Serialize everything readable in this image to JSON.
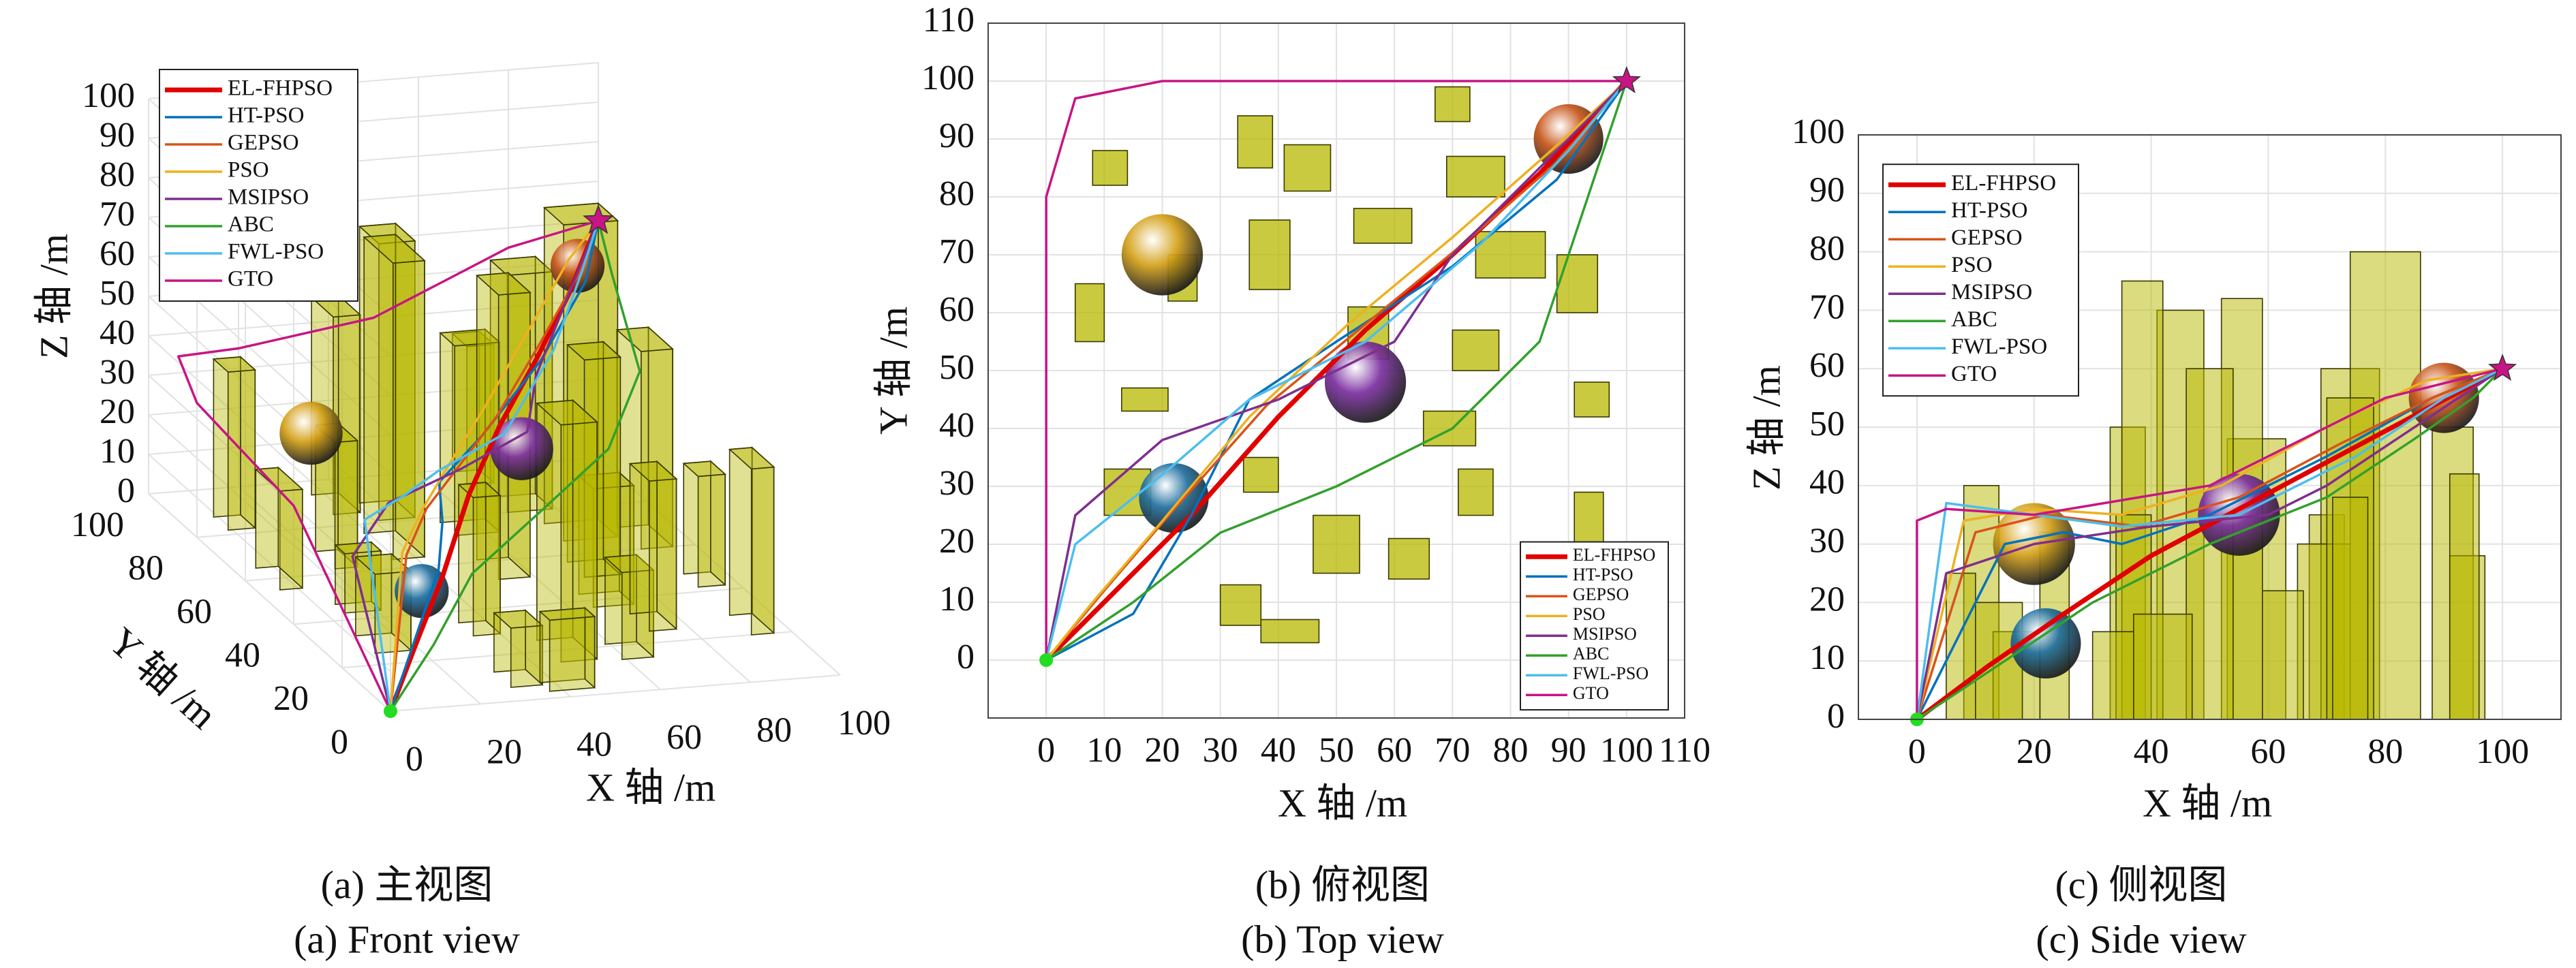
{
  "chart_data": [
    {
      "type": "line3d",
      "title": "(a) 主视图",
      "subtitle": "(a) Front view",
      "xlabel": "X 轴 /m",
      "ylabel": "Y 轴 /m",
      "zlabel": "Z 轴 /m",
      "xlim": [
        0,
        100
      ],
      "ylim": [
        0,
        100
      ],
      "zlim": [
        0,
        100
      ],
      "xticks": [
        0,
        20,
        40,
        60,
        80,
        100
      ],
      "yticks": [
        0,
        20,
        40,
        60,
        80,
        100
      ],
      "zticks": [
        0,
        10,
        20,
        30,
        40,
        50,
        60,
        70,
        80,
        90,
        100
      ],
      "grid": true,
      "legend": "upper left",
      "box_color": "#b8b800",
      "start": [
        0,
        0,
        0
      ],
      "goal": [
        100,
        100,
        60
      ],
      "boxes": [
        [
          8,
          82,
          6,
          6,
          40
        ],
        [
          33,
          85,
          6,
          9,
          50
        ],
        [
          41,
          81,
          8,
          8,
          70
        ],
        [
          67,
          93,
          6,
          6,
          35
        ],
        [
          69,
          80,
          10,
          7,
          60
        ],
        [
          35,
          64,
          7,
          12,
          75
        ],
        [
          53,
          72,
          10,
          6,
          48
        ],
        [
          74,
          66,
          12,
          8,
          80
        ],
        [
          88,
          60,
          7,
          10,
          50
        ],
        [
          5,
          55,
          5,
          10,
          25
        ],
        [
          21,
          62,
          5,
          8,
          32
        ],
        [
          13,
          43,
          8,
          4,
          15
        ],
        [
          52,
          52,
          7,
          9,
          72
        ],
        [
          65,
          37,
          9,
          6,
          30
        ],
        [
          70,
          50,
          8,
          7,
          55
        ],
        [
          91,
          42,
          6,
          6,
          28
        ],
        [
          10,
          25,
          8,
          8,
          20
        ],
        [
          34,
          29,
          6,
          6,
          35
        ],
        [
          46,
          15,
          8,
          10,
          60
        ],
        [
          59,
          14,
          7,
          7,
          22
        ],
        [
          71,
          25,
          6,
          8,
          38
        ],
        [
          91,
          20,
          5,
          9,
          42
        ],
        [
          30,
          6,
          7,
          7,
          15
        ],
        [
          37,
          3,
          10,
          4,
          18
        ]
      ],
      "spheres": [
        {
          "x": 22,
          "y": 28,
          "z": 13,
          "r": 6,
          "color": "#1f6f9f"
        },
        {
          "x": 20,
          "y": 70,
          "z": 30,
          "r": 7,
          "color": "#d4a017"
        },
        {
          "x": 55,
          "y": 48,
          "z": 35,
          "r": 7,
          "color": "#7b2fa0"
        },
        {
          "x": 90,
          "y": 90,
          "z": 55,
          "r": 6,
          "color": "#c8561a"
        }
      ],
      "series": [
        {
          "name": "EL-FHPSO",
          "color": "#e00000",
          "x": [
            0,
            12,
            25,
            40,
            55,
            70,
            85,
            100
          ],
          "y": [
            0,
            12,
            25,
            42,
            57,
            70,
            84,
            100
          ],
          "z": [
            0,
            9,
            18,
            28,
            36,
            44,
            52,
            60
          ]
        },
        {
          "name": "HT-PSO",
          "color": "#0072bd",
          "x": [
            0,
            15,
            25,
            35,
            50,
            70,
            88,
            100
          ],
          "y": [
            0,
            8,
            25,
            45,
            55,
            68,
            83,
            100
          ],
          "z": [
            0,
            30,
            32,
            30,
            35,
            45,
            55,
            60
          ]
        },
        {
          "name": "GEPSO",
          "color": "#d95319",
          "x": [
            0,
            10,
            22,
            38,
            55,
            72,
            88,
            100
          ],
          "y": [
            0,
            12,
            26,
            44,
            58,
            72,
            86,
            100
          ],
          "z": [
            0,
            32,
            35,
            33,
            38,
            47,
            55,
            60
          ]
        },
        {
          "name": "PSO",
          "color": "#edb120",
          "x": [
            0,
            8,
            20,
            35,
            52,
            70,
            87,
            100
          ],
          "y": [
            0,
            10,
            24,
            42,
            58,
            73,
            88,
            100
          ],
          "z": [
            0,
            34,
            36,
            35,
            40,
            50,
            58,
            60
          ]
        },
        {
          "name": "MSIPSO",
          "color": "#7e2f8e",
          "x": [
            0,
            5,
            20,
            40,
            60,
            70,
            85,
            100
          ],
          "y": [
            0,
            25,
            38,
            45,
            55,
            70,
            85,
            100
          ],
          "z": [
            0,
            25,
            30,
            33,
            35,
            40,
            50,
            60
          ]
        },
        {
          "name": "ABC",
          "color": "#33a02c",
          "x": [
            0,
            15,
            30,
            50,
            70,
            85,
            95,
            100
          ],
          "y": [
            0,
            10,
            22,
            30,
            40,
            55,
            85,
            100
          ],
          "z": [
            0,
            10,
            20,
            30,
            38,
            48,
            55,
            60
          ]
        },
        {
          "name": "FWL-PSO",
          "color": "#4dbeee",
          "x": [
            0,
            5,
            20,
            35,
            55,
            75,
            90,
            100
          ],
          "y": [
            0,
            20,
            32,
            45,
            55,
            72,
            88,
            100
          ],
          "z": [
            0,
            37,
            35,
            33,
            35,
            45,
            55,
            60
          ]
        },
        {
          "name": "GTO",
          "color": "#c71585",
          "x": [
            0,
            0,
            0,
            5,
            20,
            50,
            80,
            100
          ],
          "y": [
            0,
            40,
            80,
            97,
            100,
            100,
            100,
            100
          ],
          "z": [
            0,
            30,
            34,
            36,
            35,
            40,
            55,
            60
          ]
        }
      ]
    },
    {
      "type": "line",
      "title": "(b) 俯视图",
      "subtitle": "(b) Top view",
      "xlabel": "X 轴 /m",
      "ylabel": "Y 轴 /m",
      "xlim": [
        -10,
        110
      ],
      "ylim": [
        -10,
        110
      ],
      "xticks": [
        0,
        10,
        20,
        30,
        40,
        50,
        60,
        70,
        80,
        90,
        100,
        110
      ],
      "yticks": [
        0,
        10,
        20,
        30,
        40,
        50,
        60,
        70,
        80,
        90,
        100,
        110
      ],
      "grid": true,
      "legend": "lower right",
      "box_color": "#b8b800",
      "start": [
        0,
        0
      ],
      "goal": [
        100,
        100
      ],
      "boxes": [
        [
          8,
          82,
          6,
          6
        ],
        [
          33,
          85,
          6,
          9
        ],
        [
          41,
          81,
          8,
          8
        ],
        [
          67,
          93,
          6,
          6
        ],
        [
          69,
          80,
          10,
          7
        ],
        [
          35,
          64,
          7,
          12
        ],
        [
          53,
          72,
          10,
          6
        ],
        [
          74,
          66,
          12,
          8
        ],
        [
          88,
          60,
          7,
          10
        ],
        [
          5,
          55,
          5,
          10
        ],
        [
          21,
          62,
          5,
          8
        ],
        [
          13,
          43,
          8,
          4
        ],
        [
          52,
          52,
          7,
          9
        ],
        [
          65,
          37,
          9,
          6
        ],
        [
          70,
          50,
          8,
          7
        ],
        [
          91,
          42,
          6,
          6
        ],
        [
          10,
          25,
          8,
          8
        ],
        [
          34,
          29,
          6,
          6
        ],
        [
          46,
          15,
          8,
          10
        ],
        [
          59,
          14,
          7,
          7
        ],
        [
          71,
          25,
          6,
          8
        ],
        [
          91,
          20,
          5,
          9
        ],
        [
          30,
          6,
          7,
          7
        ],
        [
          37,
          3,
          10,
          4
        ]
      ],
      "spheres": [
        {
          "x": 22,
          "y": 28,
          "r": 6,
          "color": "#1f6f9f"
        },
        {
          "x": 20,
          "y": 70,
          "r": 7,
          "color": "#d4a017"
        },
        {
          "x": 55,
          "y": 48,
          "r": 7,
          "color": "#7b2fa0"
        },
        {
          "x": 90,
          "y": 90,
          "r": 6,
          "color": "#c8561a"
        }
      ],
      "series": [
        {
          "name": "EL-FHPSO",
          "color": "#e00000",
          "x": [
            0,
            12,
            25,
            40,
            55,
            70,
            85,
            100
          ],
          "values": [
            0,
            12,
            25,
            42,
            57,
            70,
            84,
            100
          ]
        },
        {
          "name": "HT-PSO",
          "color": "#0072bd",
          "x": [
            0,
            15,
            25,
            35,
            50,
            70,
            88,
            100
          ],
          "values": [
            0,
            8,
            25,
            45,
            55,
            68,
            83,
            100
          ]
        },
        {
          "name": "GEPSO",
          "color": "#d95319",
          "x": [
            0,
            10,
            22,
            38,
            55,
            72,
            88,
            100
          ],
          "values": [
            0,
            12,
            26,
            44,
            58,
            72,
            86,
            100
          ]
        },
        {
          "name": "PSO",
          "color": "#edb120",
          "x": [
            0,
            8,
            20,
            35,
            52,
            70,
            87,
            100
          ],
          "values": [
            0,
            10,
            24,
            42,
            58,
            73,
            88,
            100
          ]
        },
        {
          "name": "MSIPSO",
          "color": "#7e2f8e",
          "x": [
            0,
            5,
            20,
            40,
            60,
            70,
            85,
            100
          ],
          "values": [
            0,
            25,
            38,
            45,
            55,
            70,
            85,
            100
          ]
        },
        {
          "name": "ABC",
          "color": "#33a02c",
          "x": [
            0,
            15,
            30,
            50,
            70,
            85,
            95,
            100
          ],
          "values": [
            0,
            10,
            22,
            30,
            40,
            55,
            85,
            100
          ]
        },
        {
          "name": "FWL-PSO",
          "color": "#4dbeee",
          "x": [
            0,
            5,
            20,
            35,
            55,
            75,
            90,
            100
          ],
          "values": [
            0,
            20,
            32,
            45,
            55,
            72,
            88,
            100
          ]
        },
        {
          "name": "GTO",
          "color": "#c71585",
          "x": [
            0,
            0,
            0,
            5,
            20,
            50,
            80,
            100
          ],
          "values": [
            0,
            40,
            80,
            97,
            100,
            100,
            100,
            100
          ]
        }
      ]
    },
    {
      "type": "line",
      "title": "(c) 侧视图",
      "subtitle": "(c) Side view",
      "xlabel": "X 轴 /m",
      "ylabel": "Z 轴 /m",
      "xlim": [
        -10,
        110
      ],
      "ylim": [
        0,
        100
      ],
      "xticks": [
        0,
        20,
        40,
        60,
        80,
        100
      ],
      "yticks": [
        0,
        10,
        20,
        30,
        40,
        50,
        60,
        70,
        80,
        90,
        100
      ],
      "grid": true,
      "legend": "upper left",
      "box_color": "#b8b800",
      "start": [
        0,
        0
      ],
      "goal": [
        100,
        60
      ],
      "boxes": [
        [
          8,
          6,
          40
        ],
        [
          33,
          6,
          50
        ],
        [
          41,
          8,
          70
        ],
        [
          67,
          6,
          35
        ],
        [
          69,
          10,
          60
        ],
        [
          35,
          7,
          75
        ],
        [
          53,
          10,
          48
        ],
        [
          74,
          12,
          80
        ],
        [
          88,
          7,
          50
        ],
        [
          5,
          5,
          25
        ],
        [
          21,
          5,
          32
        ],
        [
          13,
          8,
          15
        ],
        [
          52,
          7,
          72
        ],
        [
          65,
          9,
          30
        ],
        [
          70,
          8,
          55
        ],
        [
          91,
          6,
          28
        ],
        [
          10,
          8,
          20
        ],
        [
          34,
          6,
          35
        ],
        [
          46,
          8,
          60
        ],
        [
          59,
          7,
          22
        ],
        [
          71,
          6,
          38
        ],
        [
          91,
          5,
          42
        ],
        [
          30,
          7,
          15
        ],
        [
          37,
          10,
          18
        ]
      ],
      "spheres": [
        {
          "x": 22,
          "y": 13,
          "r": 6,
          "color": "#1f6f9f"
        },
        {
          "x": 20,
          "y": 30,
          "r": 7,
          "color": "#d4a017"
        },
        {
          "x": 55,
          "y": 35,
          "r": 7,
          "color": "#7b2fa0"
        },
        {
          "x": 90,
          "y": 55,
          "r": 6,
          "color": "#c8561a"
        }
      ],
      "series": [
        {
          "name": "EL-FHPSO",
          "color": "#e00000",
          "x": [
            0,
            12,
            25,
            40,
            55,
            70,
            85,
            100
          ],
          "values": [
            0,
            9,
            18,
            28,
            36,
            44,
            52,
            60
          ]
        },
        {
          "name": "HT-PSO",
          "color": "#0072bd",
          "x": [
            0,
            15,
            25,
            35,
            50,
            70,
            88,
            100
          ],
          "values": [
            0,
            30,
            32,
            30,
            35,
            45,
            55,
            60
          ]
        },
        {
          "name": "GEPSO",
          "color": "#d95319",
          "x": [
            0,
            10,
            22,
            38,
            55,
            72,
            88,
            100
          ],
          "values": [
            0,
            32,
            35,
            33,
            38,
            47,
            55,
            60
          ]
        },
        {
          "name": "PSO",
          "color": "#edb120",
          "x": [
            0,
            8,
            20,
            35,
            52,
            70,
            87,
            100
          ],
          "values": [
            0,
            34,
            36,
            35,
            40,
            50,
            58,
            60
          ]
        },
        {
          "name": "MSIPSO",
          "color": "#7e2f8e",
          "x": [
            0,
            5,
            20,
            40,
            60,
            70,
            85,
            100
          ],
          "values": [
            0,
            25,
            30,
            33,
            35,
            40,
            50,
            60
          ]
        },
        {
          "name": "ABC",
          "color": "#33a02c",
          "x": [
            0,
            15,
            30,
            50,
            70,
            85,
            95,
            100
          ],
          "values": [
            0,
            10,
            20,
            30,
            38,
            48,
            55,
            60
          ]
        },
        {
          "name": "FWL-PSO",
          "color": "#4dbeee",
          "x": [
            0,
            5,
            20,
            35,
            55,
            75,
            90,
            100
          ],
          "values": [
            0,
            37,
            35,
            33,
            35,
            45,
            55,
            60
          ]
        },
        {
          "name": "GTO",
          "color": "#c71585",
          "x": [
            0,
            0,
            0,
            5,
            20,
            50,
            80,
            100
          ],
          "values": [
            0,
            30,
            34,
            36,
            35,
            40,
            55,
            60
          ]
        }
      ]
    }
  ]
}
